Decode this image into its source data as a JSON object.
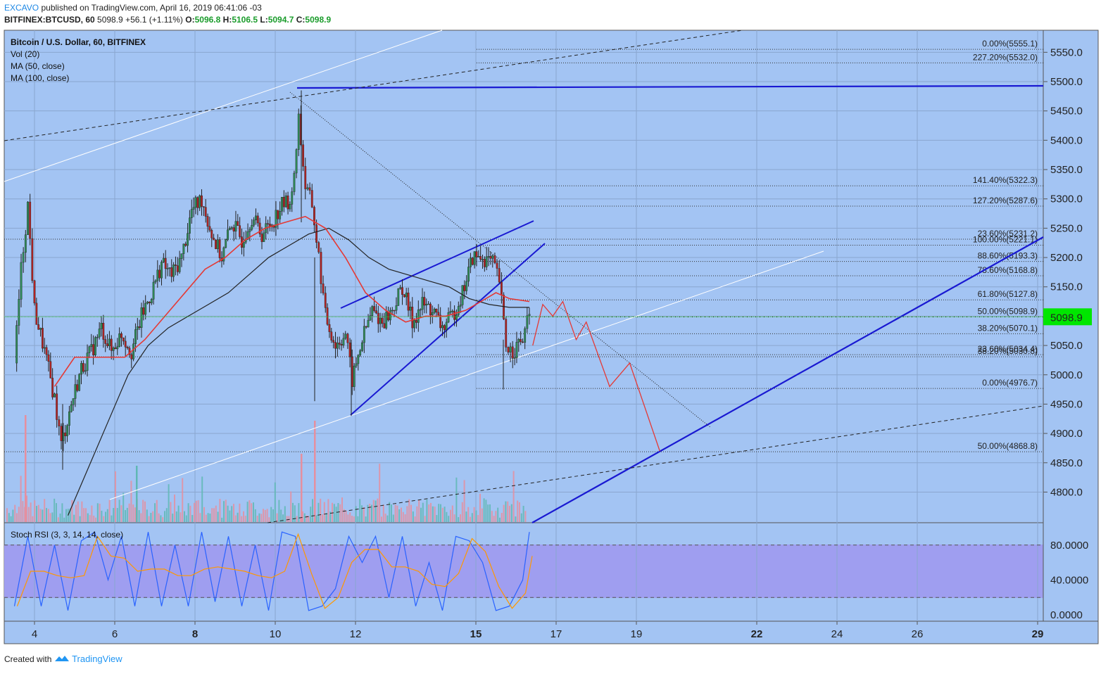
{
  "header": {
    "author": "EXCAVO",
    "published": "published on TradingView.com, April 16, 2019 06:41:06 -03",
    "symbol": "BITFINEX:BTCUSD, 60",
    "last": "5098.9",
    "change": "+56.1 (+1.11%)",
    "o_label": "O:",
    "o_value": "5096.8",
    "h_label": "H:",
    "h_value": "5106.5",
    "l_label": "L:",
    "l_value": "5094.7",
    "c_label": "C:",
    "c_value": "5098.9"
  },
  "indicators": {
    "title": "Bitcoin / U.S. Dollar, 60, BITFINEX",
    "vol": "Vol (20)",
    "ma50": "MA (50, close)",
    "ma100": "MA (100, close)",
    "stoch": "Stoch RSI (3, 3, 14, 14, close)"
  },
  "footer": {
    "created": "Created with",
    "brand": "TradingView"
  },
  "colors": {
    "chart_bg": "#a3c4f3",
    "stoch_band": "#9f9ef0",
    "up_candle": "#2e8b57",
    "down_candle": "#b22222",
    "ma50": "#e53935",
    "ma100": "#222222",
    "trendline": "#1919d2",
    "projection": "#e53935",
    "price_tag": "#00e600"
  },
  "chart_data": {
    "type": "candlestick",
    "symbol": "BITFINEX:BTCUSD",
    "interval": "60",
    "last_price": "5098.9",
    "y_ticks": [
      "5550.0",
      "5500.0",
      "5450.0",
      "5400.0",
      "5350.0",
      "5300.0",
      "5250.0",
      "5200.0",
      "5150.0",
      "5100.0",
      "5050.0",
      "5000.0",
      "4950.0",
      "4900.0",
      "4850.0",
      "4800.0"
    ],
    "x_ticks": [
      {
        "label": "4",
        "bold": false
      },
      {
        "label": "6",
        "bold": false
      },
      {
        "label": "8",
        "bold": true
      },
      {
        "label": "10",
        "bold": false
      },
      {
        "label": "12",
        "bold": false
      },
      {
        "label": "15",
        "bold": true
      },
      {
        "label": "17",
        "bold": false
      },
      {
        "label": "19",
        "bold": false
      },
      {
        "label": "22",
        "bold": true
      },
      {
        "label": "24",
        "bold": false
      },
      {
        "label": "26",
        "bold": false
      },
      {
        "label": "29",
        "bold": true
      }
    ],
    "stoch_ticks": [
      "80.0000",
      "40.0000",
      "0.0000"
    ],
    "fib_right": [
      {
        "label": "0.00%(5555.1)",
        "price": 5555.1
      },
      {
        "label": "227.20%(5532.0)",
        "price": 5532.0
      },
      {
        "label": "141.40%(5322.3)",
        "price": 5322.3
      },
      {
        "label": "127.20%(5287.6)",
        "price": 5287.6
      },
      {
        "label": "23.60%(5231.2)",
        "price": 5231.2
      },
      {
        "label": "100.00%(5221.1)",
        "price": 5221.1
      },
      {
        "label": "88.60%(5193.3)",
        "price": 5193.3
      },
      {
        "label": "78.60%(5168.8)",
        "price": 5168.8
      },
      {
        "label": "61.80%(5127.8)",
        "price": 5127.8
      },
      {
        "label": "50.00%(5098.9)",
        "price": 5098.9
      },
      {
        "label": "38.20%(5070.1)",
        "price": 5070.1
      },
      {
        "label": "23.60%(5034.4)",
        "price": 5034.4
      },
      {
        "label": "38.20%(5030.8)",
        "price": 5030.8
      },
      {
        "label": "0.00%(4976.7)",
        "price": 4976.7
      },
      {
        "label": "50.00%(4868.8)",
        "price": 4868.8
      }
    ],
    "close_path": [
      [
        "Apr 3 12:00",
        5020
      ],
      [
        "Apr 3 16:00",
        5180
      ],
      [
        "Apr 3 20:00",
        5290
      ],
      [
        "Apr 4 00:00",
        5110
      ],
      [
        "Apr 4 06:00",
        5040
      ],
      [
        "Apr 4 12:00",
        4960
      ],
      [
        "Apr 4 16:00",
        4880
      ],
      [
        "Apr 4 22:00",
        4950
      ],
      [
        "Apr 5 04:00",
        5010
      ],
      [
        "Apr 5 10:00",
        5040
      ],
      [
        "Apr 5 16:00",
        5080
      ],
      [
        "Apr 5 22:00",
        5040
      ],
      [
        "Apr 6 04:00",
        5070
      ],
      [
        "Apr 6 10:00",
        5040
      ],
      [
        "Apr 6 16:00",
        5100
      ],
      [
        "Apr 6 22:00",
        5140
      ],
      [
        "Apr 7 04:00",
        5190
      ],
      [
        "Apr 7 10:00",
        5170
      ],
      [
        "Apr 7 16:00",
        5200
      ],
      [
        "Apr 7 22:00",
        5280
      ],
      [
        "Apr 8 04:00",
        5300
      ],
      [
        "Apr 8 10:00",
        5240
      ],
      [
        "Apr 8 16:00",
        5200
      ],
      [
        "Apr 8 22:00",
        5260
      ],
      [
        "Apr 9 04:00",
        5230
      ],
      [
        "Apr 9 10:00",
        5270
      ],
      [
        "Apr 9 16:00",
        5240
      ],
      [
        "Apr 9 22:00",
        5260
      ],
      [
        "Apr 10 04:00",
        5290
      ],
      [
        "Apr 10 10:00",
        5300
      ],
      [
        "Apr 10 14:00",
        5440
      ],
      [
        "Apr 10 18:00",
        5320
      ],
      [
        "Apr 10 22:00",
        5290
      ],
      [
        "Apr 11 02:00",
        5200
      ],
      [
        "Apr 11 06:00",
        5100
      ],
      [
        "Apr 11 12:00",
        5050
      ],
      [
        "Apr 11 18:00",
        5070
      ],
      [
        "Apr 11 22:00",
        4990
      ],
      [
        "Apr 12 04:00",
        5060
      ],
      [
        "Apr 12 10:00",
        5110
      ],
      [
        "Apr 12 16:00",
        5090
      ],
      [
        "Apr 12 22:00",
        5110
      ],
      [
        "Apr 13 04:00",
        5150
      ],
      [
        "Apr 13 10:00",
        5090
      ],
      [
        "Apr 13 16:00",
        5120
      ],
      [
        "Apr 13 22:00",
        5110
      ],
      [
        "Apr 14 04:00",
        5080
      ],
      [
        "Apr 14 10:00",
        5100
      ],
      [
        "Apr 14 16:00",
        5140
      ],
      [
        "Apr 14 22:00",
        5200
      ],
      [
        "Apr 15 04:00",
        5200
      ],
      [
        "Apr 15 10:00",
        5190
      ],
      [
        "Apr 15 14:00",
        5160
      ],
      [
        "Apr 15 18:00",
        5050
      ],
      [
        "Apr 15 22:00",
        5040
      ],
      [
        "Apr 16 04:00",
        5060
      ],
      [
        "Apr 16 08:00",
        5098.9
      ]
    ],
    "ma50_path": [
      [
        "Apr 4 12:00",
        4980
      ],
      [
        "Apr 5 00:00",
        5030
      ],
      [
        "Apr 5 18:00",
        5030
      ],
      [
        "Apr 6 06:00",
        5030
      ],
      [
        "Apr 6 18:00",
        5060
      ],
      [
        "Apr 7 06:00",
        5100
      ],
      [
        "Apr 7 18:00",
        5140
      ],
      [
        "Apr 8 06:00",
        5180
      ],
      [
        "Apr 8 18:00",
        5200
      ],
      [
        "Apr 9 06:00",
        5230
      ],
      [
        "Apr 9 18:00",
        5250
      ],
      [
        "Apr 10 06:00",
        5260
      ],
      [
        "Apr 10 18:00",
        5270
      ],
      [
        "Apr 11 06:00",
        5250
      ],
      [
        "Apr 11 18:00",
        5200
      ],
      [
        "Apr 12 06:00",
        5140
      ],
      [
        "Apr 12 18:00",
        5110
      ],
      [
        "Apr 13 06:00",
        5090
      ],
      [
        "Apr 13 18:00",
        5100
      ],
      [
        "Apr 14 06:00",
        5100
      ],
      [
        "Apr 14 18:00",
        5110
      ],
      [
        "Apr 15 06:00",
        5130
      ],
      [
        "Apr 15 12:00",
        5140
      ],
      [
        "Apr 15 20:00",
        5130
      ],
      [
        "Apr 16 08:00",
        5125
      ]
    ],
    "ma100_path": [
      [
        "Apr 4 20:00",
        4760
      ],
      [
        "Apr 5 08:00",
        4840
      ],
      [
        "Apr 5 20:00",
        4920
      ],
      [
        "Apr 6 08:00",
        5000
      ],
      [
        "Apr 6 20:00",
        5050
      ],
      [
        "Apr 7 08:00",
        5080
      ],
      [
        "Apr 7 20:00",
        5100
      ],
      [
        "Apr 8 08:00",
        5120
      ],
      [
        "Apr 8 20:00",
        5140
      ],
      [
        "Apr 9 08:00",
        5170
      ],
      [
        "Apr 9 20:00",
        5200
      ],
      [
        "Apr 10 08:00",
        5220
      ],
      [
        "Apr 10 20:00",
        5240
      ],
      [
        "Apr 11 08:00",
        5250
      ],
      [
        "Apr 11 20:00",
        5230
      ],
      [
        "Apr 12 08:00",
        5200
      ],
      [
        "Apr 12 20:00",
        5180
      ],
      [
        "Apr 13 08:00",
        5170
      ],
      [
        "Apr 13 20:00",
        5160
      ],
      [
        "Apr 14 08:00",
        5150
      ],
      [
        "Apr 14 20:00",
        5130
      ],
      [
        "Apr 15 08:00",
        5120
      ],
      [
        "Apr 15 20:00",
        5115
      ],
      [
        "Apr 16 08:00",
        5115
      ]
    ],
    "projection_path": [
      [
        "Apr 16 10:00",
        5050
      ],
      [
        "Apr 16 16:00",
        5120
      ],
      [
        "Apr 16 22:00",
        5100
      ],
      [
        "Apr 17 04:00",
        5125
      ],
      [
        "Apr 17 12:00",
        5060
      ],
      [
        "Apr 17 18:00",
        5090
      ],
      [
        "Apr 18 08:00",
        4980
      ],
      [
        "Apr 18 20:00",
        5020
      ],
      [
        "Apr 19 14:00",
        4870
      ]
    ],
    "stoch_rsi": {
      "upper_band": 80,
      "lower_band": 20,
      "ylim": [
        0,
        100
      ],
      "k_points": [
        [
          "Apr 3 12:00",
          10
        ],
        [
          "Apr 3 20:00",
          90
        ],
        [
          "Apr 4 04:00",
          10
        ],
        [
          "Apr 4 12:00",
          80
        ],
        [
          "Apr 4 20:00",
          5
        ],
        [
          "Apr 5 04:00",
          85
        ],
        [
          "Apr 5 12:00",
          95
        ],
        [
          "Apr 5 20:00",
          40
        ],
        [
          "Apr 6 04:00",
          90
        ],
        [
          "Apr 6 12:00",
          10
        ],
        [
          "Apr 6 20:00",
          95
        ],
        [
          "Apr 7 04:00",
          10
        ],
        [
          "Apr 7 12:00",
          80
        ],
        [
          "Apr 7 20:00",
          10
        ],
        [
          "Apr 8 04:00",
          95
        ],
        [
          "Apr 8 12:00",
          15
        ],
        [
          "Apr 8 20:00",
          90
        ],
        [
          "Apr 9 04:00",
          10
        ],
        [
          "Apr 9 12:00",
          80
        ],
        [
          "Apr 9 20:00",
          5
        ],
        [
          "Apr 10 04:00",
          95
        ],
        [
          "Apr 10 12:00",
          90
        ],
        [
          "Apr 10 20:00",
          5
        ],
        [
          "Apr 11 04:00",
          10
        ],
        [
          "Apr 11 12:00",
          30
        ],
        [
          "Apr 11 20:00",
          90
        ],
        [
          "Apr 12 04:00",
          60
        ],
        [
          "Apr 12 12:00",
          90
        ],
        [
          "Apr 12 20:00",
          20
        ],
        [
          "Apr 13 04:00",
          90
        ],
        [
          "Apr 13 12:00",
          10
        ],
        [
          "Apr 13 20:00",
          60
        ],
        [
          "Apr 14 04:00",
          5
        ],
        [
          "Apr 14 12:00",
          90
        ],
        [
          "Apr 14 20:00",
          85
        ],
        [
          "Apr 15 04:00",
          60
        ],
        [
          "Apr 15 12:00",
          5
        ],
        [
          "Apr 15 20:00",
          10
        ],
        [
          "Apr 16 04:00",
          40
        ],
        [
          "Apr 16 08:00",
          95
        ]
      ]
    }
  }
}
